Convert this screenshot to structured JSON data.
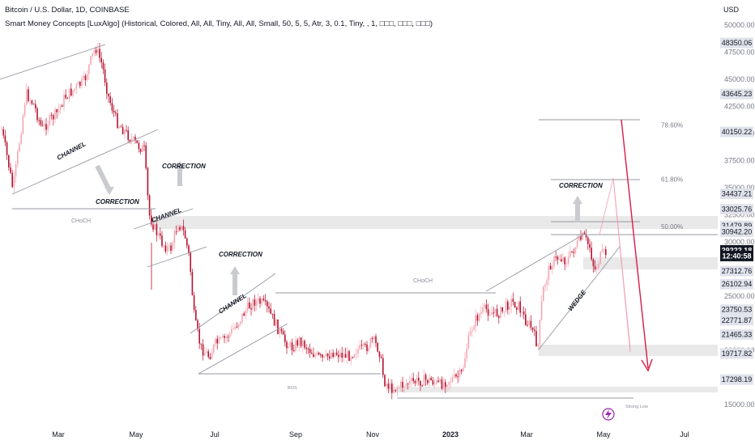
{
  "header": {
    "title": "Bitcoin / U.S. Dollar, 1D, COINBASE",
    "indicator": "Smart Money Concepts [LuxAlgo] (Historical, Colored, All, All, Tiny, All, All, Small, 50, 5, 5, Atr, 3, 0.1, Tiny, , 1, □□□, □□□, □□□)"
  },
  "colors": {
    "up": "#f4a6b2",
    "down": "#b5122f",
    "accent": "#d81b45",
    "zone": "#e4e4e4",
    "line": "#9598a1"
  },
  "chart_data": {
    "type": "candlestick",
    "price_axis": {
      "currency": "USD",
      "ticks": [
        "50000.00",
        "47500.00",
        "45000.00",
        "42500.00",
        "40000.00",
        "37500.00",
        "35000.00",
        "32500.00",
        "30000.00",
        "25000.00",
        "20000.00",
        "15000.00"
      ],
      "tick_values": [
        50000,
        47500,
        45000,
        42500,
        40000,
        37500,
        35000,
        32500,
        30000,
        25000,
        20000,
        15000
      ],
      "price_tags": [
        {
          "label": "48350.06",
          "value": 48350
        },
        {
          "label": "43645.23",
          "value": 43645
        },
        {
          "label": "40150.22",
          "value": 40150
        },
        {
          "label": "34437.21",
          "value": 34437
        },
        {
          "label": "33025.76",
          "value": 33026
        },
        {
          "label": "31479.89",
          "value": 31480
        },
        {
          "label": "30942.20",
          "value": 30942
        },
        {
          "label": "29222.18",
          "value": 29222,
          "current": true
        },
        {
          "label": "12:40:58",
          "value": 28700,
          "current": true
        },
        {
          "label": "27312.76",
          "value": 27313
        },
        {
          "label": "26102.94",
          "value": 26103
        },
        {
          "label": "23750.53",
          "value": 23751
        },
        {
          "label": "22771.87",
          "value": 22772
        },
        {
          "label": "21465.33",
          "value": 21465
        },
        {
          "label": "19717.82",
          "value": 19718
        },
        {
          "label": "17298.19",
          "value": 17298
        }
      ]
    },
    "time_axis": [
      "Mar",
      "May",
      "Jul",
      "Sep",
      "Nov",
      "2023",
      "Mar",
      "May",
      "Jul"
    ],
    "fibonacci": [
      {
        "label": "78.60%",
        "value": 40800
      },
      {
        "label": "61.80%",
        "value": 35800
      },
      {
        "label": "50.00%",
        "value": 31400
      }
    ],
    "annotations": [
      "CHANNEL",
      "CORRECTION",
      "CHANNEL",
      "CORRECTION",
      "CHANNEL",
      "CORRECTION",
      "CORRECTION",
      "WEDGE"
    ],
    "structure_labels": [
      "CHoCH",
      "CHoCH",
      "BOS",
      "Strong Low"
    ]
  }
}
